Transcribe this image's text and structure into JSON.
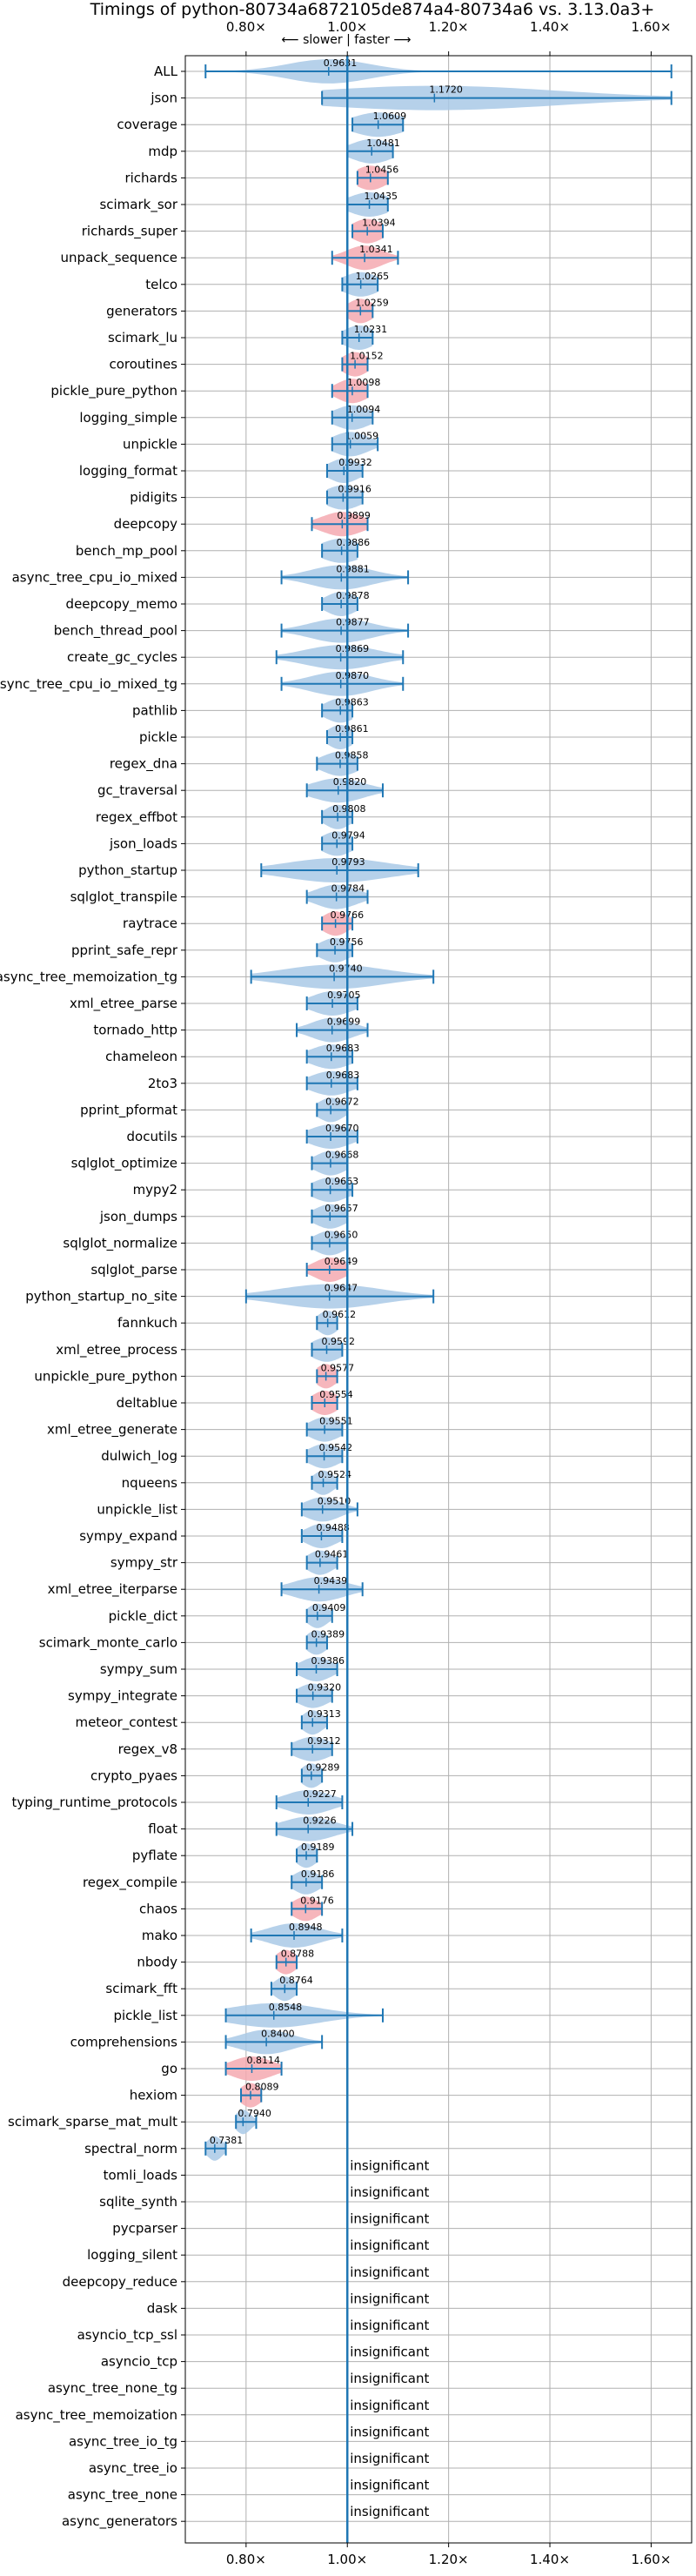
{
  "chart_data": {
    "type": "violin",
    "title": "Timings of python-80734a6872105de874a4-80734a6 vs. 3.13.0a3+",
    "subtitle": "⟵ slower | faster ⟶",
    "xlim": [
      0.68,
      1.68
    ],
    "xticks": [
      {
        "value": 0.8,
        "label": "0.80×"
      },
      {
        "value": 1.0,
        "label": "1.00×"
      },
      {
        "value": 1.2,
        "label": "1.20×"
      },
      {
        "value": 1.4,
        "label": "1.40×"
      },
      {
        "value": 1.6,
        "label": "1.60×"
      }
    ],
    "reference_line": 1.0,
    "grid": true,
    "insignificant_label": "insignificant",
    "benchmarks": [
      {
        "name": "ALL",
        "value": 0.9631,
        "label": "0.9631",
        "min": 0.72,
        "max": 1.64,
        "spread": 0.08,
        "color": "blue"
      },
      {
        "name": "json",
        "value": 1.172,
        "label": "1.1720",
        "min": 0.95,
        "max": 1.64,
        "spread": 0.24,
        "color": "blue"
      },
      {
        "name": "coverage",
        "value": 1.0609,
        "label": "1.0609",
        "min": 1.01,
        "max": 1.11,
        "spread": 0.05,
        "color": "blue"
      },
      {
        "name": "mdp",
        "value": 1.0481,
        "label": "1.0481",
        "min": 1.0,
        "max": 1.09,
        "spread": 0.04,
        "color": "blue"
      },
      {
        "name": "richards",
        "value": 1.0456,
        "label": "1.0456",
        "min": 1.02,
        "max": 1.08,
        "spread": 0.03,
        "color": "red"
      },
      {
        "name": "scimark_sor",
        "value": 1.0435,
        "label": "1.0435",
        "min": 1.0,
        "max": 1.08,
        "spread": 0.04,
        "color": "blue"
      },
      {
        "name": "richards_super",
        "value": 1.0394,
        "label": "1.0394",
        "min": 1.01,
        "max": 1.07,
        "spread": 0.03,
        "color": "red"
      },
      {
        "name": "unpack_sequence",
        "value": 1.0341,
        "label": "1.0341",
        "min": 0.97,
        "max": 1.1,
        "spread": 0.035,
        "color": "red"
      },
      {
        "name": "telco",
        "value": 1.0265,
        "label": "1.0265",
        "min": 0.99,
        "max": 1.06,
        "spread": 0.035,
        "color": "blue"
      },
      {
        "name": "generators",
        "value": 1.0259,
        "label": "1.0259",
        "min": 1.0,
        "max": 1.05,
        "spread": 0.025,
        "color": "red"
      },
      {
        "name": "scimark_lu",
        "value": 1.0231,
        "label": "1.0231",
        "min": 0.99,
        "max": 1.05,
        "spread": 0.03,
        "color": "blue"
      },
      {
        "name": "coroutines",
        "value": 1.0152,
        "label": "1.0152",
        "min": 0.99,
        "max": 1.04,
        "spread": 0.025,
        "color": "red"
      },
      {
        "name": "pickle_pure_python",
        "value": 1.0098,
        "label": "1.0098",
        "min": 0.97,
        "max": 1.04,
        "spread": 0.03,
        "color": "red"
      },
      {
        "name": "logging_simple",
        "value": 1.0094,
        "label": "1.0094",
        "min": 0.97,
        "max": 1.05,
        "spread": 0.035,
        "color": "blue"
      },
      {
        "name": "unpickle",
        "value": 1.0059,
        "label": "1.0059",
        "min": 0.97,
        "max": 1.06,
        "spread": 0.035,
        "color": "blue"
      },
      {
        "name": "logging_format",
        "value": 0.9932,
        "label": "0.9932",
        "min": 0.96,
        "max": 1.03,
        "spread": 0.03,
        "color": "blue"
      },
      {
        "name": "pidigits",
        "value": 0.9916,
        "label": "0.9916",
        "min": 0.96,
        "max": 1.03,
        "spread": 0.035,
        "color": "blue"
      },
      {
        "name": "deepcopy",
        "value": 0.9899,
        "label": "0.9899",
        "min": 0.93,
        "max": 1.04,
        "spread": 0.04,
        "color": "red"
      },
      {
        "name": "bench_mp_pool",
        "value": 0.9886,
        "label": "0.9886",
        "min": 0.95,
        "max": 1.02,
        "spread": 0.04,
        "color": "blue"
      },
      {
        "name": "async_tree_cpu_io_mixed",
        "value": 0.9881,
        "label": "0.9881",
        "min": 0.87,
        "max": 1.12,
        "spread": 0.06,
        "color": "blue"
      },
      {
        "name": "deepcopy_memo",
        "value": 0.9878,
        "label": "0.9878",
        "min": 0.95,
        "max": 1.02,
        "spread": 0.03,
        "color": "blue"
      },
      {
        "name": "bench_thread_pool",
        "value": 0.9877,
        "label": "0.9877",
        "min": 0.87,
        "max": 1.12,
        "spread": 0.06,
        "color": "blue"
      },
      {
        "name": "create_gc_cycles",
        "value": 0.9869,
        "label": "0.9869",
        "min": 0.86,
        "max": 1.11,
        "spread": 0.07,
        "color": "blue"
      },
      {
        "name": "async_tree_cpu_io_mixed_tg",
        "value": 0.987,
        "label": "0.9870",
        "min": 0.87,
        "max": 1.11,
        "spread": 0.06,
        "color": "blue"
      },
      {
        "name": "pathlib",
        "value": 0.9863,
        "label": "0.9863",
        "min": 0.95,
        "max": 1.01,
        "spread": 0.03,
        "color": "blue"
      },
      {
        "name": "pickle",
        "value": 0.9861,
        "label": "0.9861",
        "min": 0.96,
        "max": 1.01,
        "spread": 0.025,
        "color": "blue"
      },
      {
        "name": "regex_dna",
        "value": 0.9858,
        "label": "0.9858",
        "min": 0.94,
        "max": 1.02,
        "spread": 0.035,
        "color": "blue"
      },
      {
        "name": "gc_traversal",
        "value": 0.982,
        "label": "0.9820",
        "min": 0.92,
        "max": 1.07,
        "spread": 0.05,
        "color": "blue"
      },
      {
        "name": "regex_effbot",
        "value": 0.9808,
        "label": "0.9808",
        "min": 0.95,
        "max": 1.01,
        "spread": 0.025,
        "color": "blue"
      },
      {
        "name": "json_loads",
        "value": 0.9794,
        "label": "0.9794",
        "min": 0.95,
        "max": 1.01,
        "spread": 0.03,
        "color": "blue"
      },
      {
        "name": "python_startup",
        "value": 0.9793,
        "label": "0.9793",
        "min": 0.83,
        "max": 1.14,
        "spread": 0.1,
        "color": "blue"
      },
      {
        "name": "sqlglot_transpile",
        "value": 0.9784,
        "label": "0.9784",
        "min": 0.92,
        "max": 1.04,
        "spread": 0.04,
        "color": "blue"
      },
      {
        "name": "raytrace",
        "value": 0.9766,
        "label": "0.9766",
        "min": 0.95,
        "max": 1.01,
        "spread": 0.025,
        "color": "red"
      },
      {
        "name": "pprint_safe_repr",
        "value": 0.9756,
        "label": "0.9756",
        "min": 0.94,
        "max": 1.01,
        "spread": 0.03,
        "color": "blue"
      },
      {
        "name": "async_tree_memoization_tg",
        "value": 0.974,
        "label": "0.9740",
        "min": 0.81,
        "max": 1.17,
        "spread": 0.1,
        "color": "blue"
      },
      {
        "name": "xml_etree_parse",
        "value": 0.9705,
        "label": "0.9705",
        "min": 0.92,
        "max": 1.02,
        "spread": 0.04,
        "color": "blue"
      },
      {
        "name": "tornado_http",
        "value": 0.9699,
        "label": "0.9699",
        "min": 0.9,
        "max": 1.04,
        "spread": 0.04,
        "color": "blue"
      },
      {
        "name": "chameleon",
        "value": 0.9683,
        "label": "0.9683",
        "min": 0.92,
        "max": 1.01,
        "spread": 0.04,
        "color": "blue"
      },
      {
        "name": "2to3",
        "value": 0.9683,
        "label": "0.9683",
        "min": 0.92,
        "max": 1.02,
        "spread": 0.04,
        "color": "blue"
      },
      {
        "name": "pprint_pformat",
        "value": 0.9672,
        "label": "0.9672",
        "min": 0.94,
        "max": 1.0,
        "spread": 0.025,
        "color": "blue"
      },
      {
        "name": "docutils",
        "value": 0.967,
        "label": "0.9670",
        "min": 0.92,
        "max": 1.02,
        "spread": 0.04,
        "color": "blue"
      },
      {
        "name": "sqlglot_optimize",
        "value": 0.9668,
        "label": "0.9668",
        "min": 0.93,
        "max": 1.0,
        "spread": 0.03,
        "color": "blue"
      },
      {
        "name": "mypy2",
        "value": 0.9663,
        "label": "0.9663",
        "min": 0.93,
        "max": 1.01,
        "spread": 0.035,
        "color": "blue"
      },
      {
        "name": "json_dumps",
        "value": 0.9657,
        "label": "0.9657",
        "min": 0.93,
        "max": 1.0,
        "spread": 0.03,
        "color": "blue"
      },
      {
        "name": "sqlglot_normalize",
        "value": 0.965,
        "label": "0.9650",
        "min": 0.93,
        "max": 1.0,
        "spread": 0.03,
        "color": "blue"
      },
      {
        "name": "sqlglot_parse",
        "value": 0.9649,
        "label": "0.9649",
        "min": 0.92,
        "max": 1.0,
        "spread": 0.03,
        "color": "red"
      },
      {
        "name": "python_startup_no_site",
        "value": 0.9647,
        "label": "0.9647",
        "min": 0.8,
        "max": 1.17,
        "spread": 0.1,
        "color": "blue"
      },
      {
        "name": "fannkuch",
        "value": 0.9612,
        "label": "0.9612",
        "min": 0.94,
        "max": 0.98,
        "spread": 0.02,
        "color": "blue"
      },
      {
        "name": "xml_etree_process",
        "value": 0.9592,
        "label": "0.9592",
        "min": 0.93,
        "max": 0.99,
        "spread": 0.03,
        "color": "blue"
      },
      {
        "name": "unpickle_pure_python",
        "value": 0.9577,
        "label": "0.9577",
        "min": 0.94,
        "max": 0.98,
        "spread": 0.02,
        "color": "red"
      },
      {
        "name": "deltablue",
        "value": 0.9554,
        "label": "0.9554",
        "min": 0.93,
        "max": 0.98,
        "spread": 0.025,
        "color": "red"
      },
      {
        "name": "xml_etree_generate",
        "value": 0.9551,
        "label": "0.9551",
        "min": 0.92,
        "max": 0.99,
        "spread": 0.03,
        "color": "blue"
      },
      {
        "name": "dulwich_log",
        "value": 0.9542,
        "label": "0.9542",
        "min": 0.92,
        "max": 0.99,
        "spread": 0.03,
        "color": "blue"
      },
      {
        "name": "nqueens",
        "value": 0.9524,
        "label": "0.9524",
        "min": 0.93,
        "max": 0.98,
        "spread": 0.02,
        "color": "blue"
      },
      {
        "name": "unpickle_list",
        "value": 0.951,
        "label": "0.9510",
        "min": 0.91,
        "max": 1.02,
        "spread": 0.035,
        "color": "blue"
      },
      {
        "name": "sympy_expand",
        "value": 0.9488,
        "label": "0.9488",
        "min": 0.91,
        "max": 0.99,
        "spread": 0.03,
        "color": "blue"
      },
      {
        "name": "sympy_str",
        "value": 0.9461,
        "label": "0.9461",
        "min": 0.92,
        "max": 0.98,
        "spread": 0.025,
        "color": "blue"
      },
      {
        "name": "xml_etree_iterparse",
        "value": 0.9439,
        "label": "0.9439",
        "min": 0.87,
        "max": 1.03,
        "spread": 0.05,
        "color": "blue"
      },
      {
        "name": "pickle_dict",
        "value": 0.9409,
        "label": "0.9409",
        "min": 0.92,
        "max": 0.97,
        "spread": 0.02,
        "color": "blue"
      },
      {
        "name": "scimark_monte_carlo",
        "value": 0.9389,
        "label": "0.9389",
        "min": 0.92,
        "max": 0.96,
        "spread": 0.02,
        "color": "blue"
      },
      {
        "name": "sympy_sum",
        "value": 0.9386,
        "label": "0.9386",
        "min": 0.9,
        "max": 0.98,
        "spread": 0.03,
        "color": "blue"
      },
      {
        "name": "sympy_integrate",
        "value": 0.932,
        "label": "0.9320",
        "min": 0.9,
        "max": 0.97,
        "spread": 0.03,
        "color": "blue"
      },
      {
        "name": "meteor_contest",
        "value": 0.9313,
        "label": "0.9313",
        "min": 0.91,
        "max": 0.96,
        "spread": 0.02,
        "color": "blue"
      },
      {
        "name": "regex_v8",
        "value": 0.9312,
        "label": "0.9312",
        "min": 0.89,
        "max": 0.97,
        "spread": 0.035,
        "color": "blue"
      },
      {
        "name": "crypto_pyaes",
        "value": 0.9289,
        "label": "0.9289",
        "min": 0.91,
        "max": 0.95,
        "spread": 0.02,
        "color": "blue"
      },
      {
        "name": "typing_runtime_protocols",
        "value": 0.9227,
        "label": "0.9227",
        "min": 0.86,
        "max": 0.99,
        "spread": 0.045,
        "color": "blue"
      },
      {
        "name": "float",
        "value": 0.9226,
        "label": "0.9226",
        "min": 0.86,
        "max": 1.01,
        "spread": 0.05,
        "color": "blue"
      },
      {
        "name": "pyflate",
        "value": 0.9189,
        "label": "0.9189",
        "min": 0.9,
        "max": 0.94,
        "spread": 0.02,
        "color": "blue"
      },
      {
        "name": "regex_compile",
        "value": 0.9186,
        "label": "0.9186",
        "min": 0.89,
        "max": 0.95,
        "spread": 0.025,
        "color": "blue"
      },
      {
        "name": "chaos",
        "value": 0.9176,
        "label": "0.9176",
        "min": 0.89,
        "max": 0.95,
        "spread": 0.025,
        "color": "red"
      },
      {
        "name": "mako",
        "value": 0.8948,
        "label": "0.8948",
        "min": 0.81,
        "max": 0.99,
        "spread": 0.05,
        "color": "blue"
      },
      {
        "name": "nbody",
        "value": 0.8788,
        "label": "0.8788",
        "min": 0.86,
        "max": 0.9,
        "spread": 0.02,
        "color": "red"
      },
      {
        "name": "scimark_fft",
        "value": 0.8764,
        "label": "0.8764",
        "min": 0.85,
        "max": 0.9,
        "spread": 0.02,
        "color": "blue"
      },
      {
        "name": "pickle_list",
        "value": 0.8548,
        "label": "0.8548",
        "min": 0.76,
        "max": 1.07,
        "spread": 0.09,
        "color": "blue"
      },
      {
        "name": "comprehensions",
        "value": 0.84,
        "label": "0.8400",
        "min": 0.76,
        "max": 0.95,
        "spread": 0.05,
        "color": "blue"
      },
      {
        "name": "go",
        "value": 0.8114,
        "label": "0.8114",
        "min": 0.76,
        "max": 0.87,
        "spread": 0.04,
        "color": "red"
      },
      {
        "name": "hexiom",
        "value": 0.8089,
        "label": "0.8089",
        "min": 0.79,
        "max": 0.83,
        "spread": 0.02,
        "color": "red"
      },
      {
        "name": "scimark_sparse_mat_mult",
        "value": 0.794,
        "label": "0.7940",
        "min": 0.78,
        "max": 0.82,
        "spread": 0.015,
        "color": "blue"
      },
      {
        "name": "spectral_norm",
        "value": 0.7381,
        "label": "0.7381",
        "min": 0.72,
        "max": 0.76,
        "spread": 0.015,
        "color": "blue"
      },
      {
        "name": "tomli_loads",
        "insignificant": true
      },
      {
        "name": "sqlite_synth",
        "insignificant": true
      },
      {
        "name": "pycparser",
        "insignificant": true
      },
      {
        "name": "logging_silent",
        "insignificant": true
      },
      {
        "name": "deepcopy_reduce",
        "insignificant": true
      },
      {
        "name": "dask",
        "insignificant": true
      },
      {
        "name": "asyncio_tcp_ssl",
        "insignificant": true
      },
      {
        "name": "asyncio_tcp",
        "insignificant": true
      },
      {
        "name": "async_tree_none_tg",
        "insignificant": true
      },
      {
        "name": "async_tree_memoization",
        "insignificant": true
      },
      {
        "name": "async_tree_io_tg",
        "insignificant": true
      },
      {
        "name": "async_tree_io",
        "insignificant": true
      },
      {
        "name": "async_tree_none",
        "insignificant": true
      },
      {
        "name": "async_generators",
        "insignificant": true
      }
    ],
    "colors": {
      "blue_fill": "#a9c9e6",
      "red_fill": "#f4a9b0",
      "line": "#1f77b4",
      "grid": "#b0b0b0",
      "axis": "#000000"
    }
  }
}
